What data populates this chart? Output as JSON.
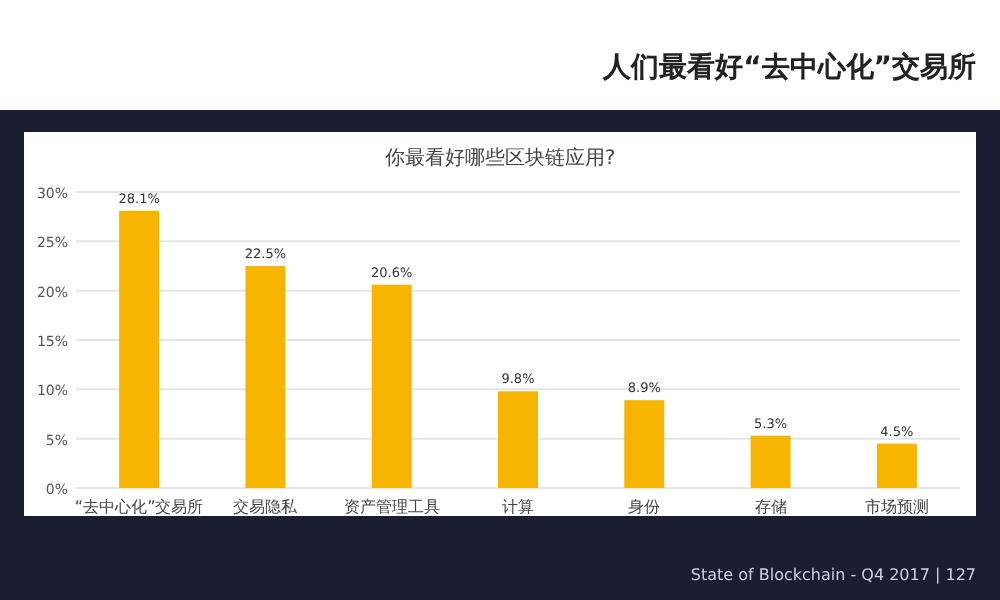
{
  "chart_data": {
    "type": "bar",
    "title": "你最看好哪些区块链应用?",
    "categories": [
      "“去中心化”交易所",
      "交易隐私",
      "资产管理工具",
      "计算",
      "身份",
      "存储",
      "市场预测"
    ],
    "series": [
      {
        "color": "#f7b500",
        "values": [
          28.1,
          22.5,
          20.6,
          9.8,
          8.9,
          5.3,
          4.5
        ],
        "value_labels": [
          "28.1%",
          "22.5%",
          "20.6%",
          "9.8%",
          "8.9%",
          "5.3%",
          "4.5%"
        ]
      }
    ],
    "ylim": [
      0,
      30
    ],
    "yticks": [
      {
        "value": 0,
        "label": "0%"
      },
      {
        "value": 5,
        "label": "5%"
      },
      {
        "value": 10,
        "label": "10%"
      },
      {
        "value": 15,
        "label": "15%"
      },
      {
        "value": 20,
        "label": "20%"
      },
      {
        "value": 25,
        "label": "25%"
      },
      {
        "value": 30,
        "label": "30%"
      }
    ],
    "grid": "y",
    "annotations": [
      "人们最看好“去中心化”交易所",
      "State of Blockchain - Q4 2017 | 127"
    ]
  }
}
